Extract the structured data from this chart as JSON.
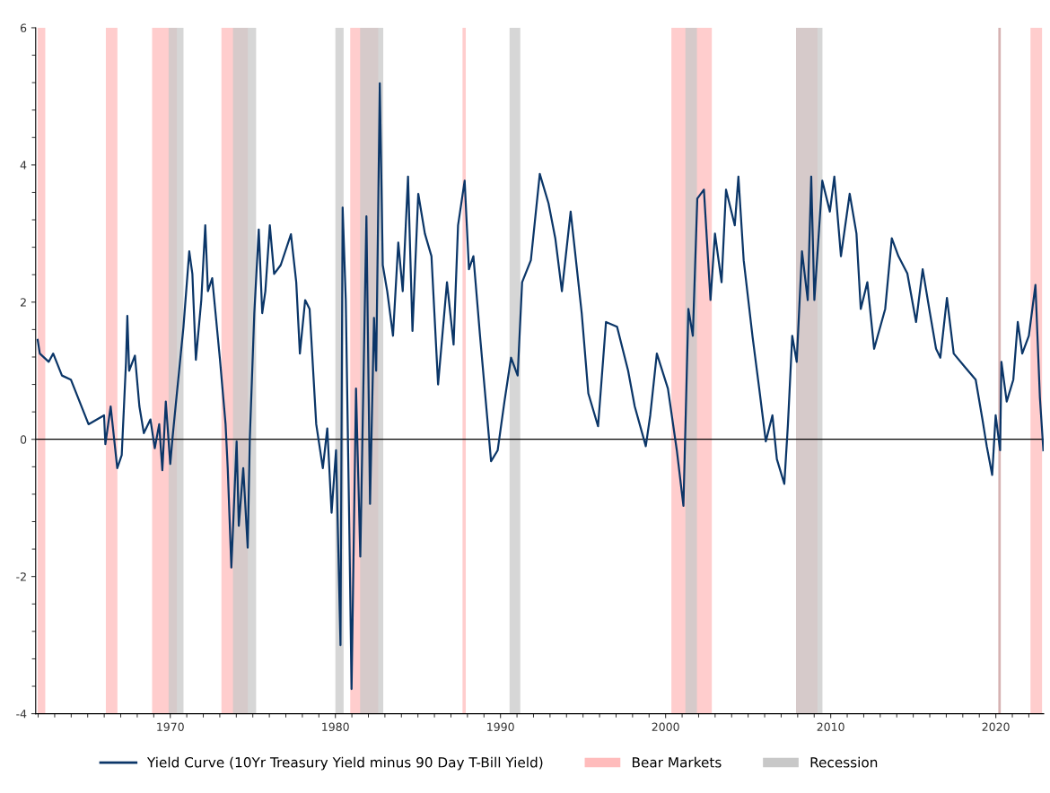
{
  "chart_data": {
    "type": "line",
    "xlim": [
      1961.85,
      2022.9
    ],
    "xticks": [
      1970,
      1980,
      1990,
      2000,
      2010,
      2020
    ],
    "ylim": [
      -4,
      6
    ],
    "yticks": [
      -4,
      -2,
      0,
      2,
      4,
      6
    ],
    "grid": false,
    "legend": "bottom",
    "marker": "none",
    "line_style": "solid",
    "series": [
      {
        "name": "Yield Curve (10Yr Treasury Yield minus 90 Day T-Bill Yield)",
        "color": "#0b3668",
        "x": [
          1961.97,
          1962.1,
          1962.64,
          1962.91,
          1963.44,
          1963.98,
          1965.05,
          1965.99,
          1966.07,
          1966.39,
          1966.79,
          1967.06,
          1967.32,
          1967.4,
          1967.51,
          1967.86,
          1968.13,
          1968.4,
          1968.8,
          1969.06,
          1969.33,
          1969.52,
          1969.73,
          1970.0,
          1970.14,
          1970.4,
          1970.8,
          1971.15,
          1971.34,
          1971.55,
          1971.88,
          1972.12,
          1972.28,
          1972.54,
          1973.0,
          1973.35,
          1973.48,
          1973.7,
          1974.02,
          1974.15,
          1974.42,
          1974.69,
          1974.82,
          1975.09,
          1975.36,
          1975.57,
          1975.76,
          1976.03,
          1976.29,
          1976.69,
          1977.31,
          1977.63,
          1977.85,
          1978.17,
          1978.44,
          1978.84,
          1979.24,
          1979.51,
          1979.77,
          1980.04,
          1980.31,
          1980.44,
          1980.63,
          1980.85,
          1980.98,
          1981.25,
          1981.51,
          1981.88,
          1982.1,
          1982.34,
          1982.47,
          1982.69,
          1982.87,
          1983.14,
          1983.49,
          1983.81,
          1984.08,
          1984.4,
          1984.67,
          1985.02,
          1985.42,
          1985.82,
          1986.22,
          1986.76,
          1987.16,
          1987.43,
          1987.83,
          1988.09,
          1988.36,
          1988.76,
          1989.43,
          1989.83,
          1990.24,
          1990.64,
          1991.04,
          1991.31,
          1991.84,
          1992.38,
          1992.91,
          1993.32,
          1993.72,
          1994.25,
          1994.92,
          1995.32,
          1995.91,
          1996.39,
          1997.06,
          1997.73,
          1998.13,
          1998.8,
          1999.07,
          1999.47,
          2000.14,
          2000.68,
          2001.08,
          2001.38,
          2001.65,
          2001.92,
          2002.32,
          2002.72,
          2002.99,
          2003.39,
          2003.66,
          2004.19,
          2004.41,
          2004.73,
          2005.26,
          2005.67,
          2006.07,
          2006.47,
          2006.74,
          2007.19,
          2007.41,
          2007.67,
          2007.94,
          2008.26,
          2008.61,
          2008.82,
          2009.01,
          2009.49,
          2009.95,
          2010.22,
          2010.62,
          2011.15,
          2011.56,
          2011.82,
          2012.22,
          2012.63,
          2013.3,
          2013.7,
          2014.1,
          2014.64,
          2015.17,
          2015.57,
          2015.97,
          2016.38,
          2016.64,
          2017.04,
          2017.45,
          2018.11,
          2018.78,
          2019.19,
          2019.45,
          2019.78,
          2019.99,
          2020.26,
          2020.34,
          2020.66,
          2021.06,
          2021.33,
          2021.6,
          2022.0,
          2022.4,
          2022.67,
          2022.88
        ],
        "values": [
          1.45,
          1.25,
          1.13,
          1.25,
          0.93,
          0.87,
          0.22,
          0.35,
          -0.07,
          0.48,
          -0.42,
          -0.23,
          1.13,
          1.8,
          1.0,
          1.22,
          0.48,
          0.09,
          0.29,
          -0.13,
          0.22,
          -0.45,
          0.55,
          -0.36,
          0.03,
          0.67,
          1.64,
          2.74,
          2.41,
          1.16,
          2.03,
          3.12,
          2.16,
          2.35,
          1.19,
          0.22,
          -0.42,
          -1.87,
          -0.03,
          -1.26,
          -0.42,
          -1.58,
          0.03,
          1.84,
          3.06,
          1.84,
          2.16,
          3.12,
          2.41,
          2.54,
          2.99,
          2.29,
          1.25,
          2.03,
          1.9,
          0.22,
          -0.42,
          0.16,
          -1.07,
          -0.16,
          -3.0,
          3.38,
          2.03,
          -1.39,
          -3.64,
          0.74,
          -1.71,
          3.25,
          -0.94,
          1.77,
          1.0,
          5.19,
          2.54,
          2.16,
          1.51,
          2.87,
          2.16,
          3.83,
          1.58,
          3.58,
          3.0,
          2.67,
          0.8,
          2.29,
          1.38,
          3.12,
          3.77,
          2.48,
          2.67,
          1.51,
          -0.32,
          -0.16,
          0.55,
          1.19,
          0.93,
          2.29,
          2.61,
          3.87,
          3.44,
          2.93,
          2.16,
          3.32,
          1.84,
          0.67,
          0.19,
          1.71,
          1.64,
          1.0,
          0.48,
          -0.1,
          0.35,
          1.25,
          0.74,
          -0.16,
          -0.97,
          1.9,
          1.51,
          3.51,
          3.64,
          2.03,
          3.0,
          2.29,
          3.64,
          3.12,
          3.83,
          2.61,
          1.51,
          0.74,
          -0.03,
          0.35,
          -0.29,
          -0.65,
          0.22,
          1.51,
          1.13,
          2.74,
          2.03,
          3.83,
          2.03,
          3.77,
          3.32,
          3.83,
          2.67,
          3.58,
          3.0,
          1.9,
          2.29,
          1.32,
          1.9,
          2.93,
          2.67,
          2.42,
          1.71,
          2.48,
          1.9,
          1.32,
          1.19,
          2.06,
          1.25,
          1.06,
          0.87,
          0.29,
          -0.1,
          -0.52,
          0.35,
          -0.16,
          1.13,
          0.55,
          0.87,
          1.71,
          1.25,
          1.51,
          2.25,
          0.61,
          -0.16
        ]
      }
    ],
    "ref_lines": [
      {
        "axis": "y",
        "value": 0,
        "color": "#000000",
        "line_style": "solid"
      }
    ],
    "bands": [
      {
        "axis": "x",
        "from": 1961.97,
        "to": 1962.43,
        "label": "Bear Markets",
        "color": "#ffbcbc"
      },
      {
        "axis": "x",
        "from": 1966.1,
        "to": 1966.8,
        "color": "#ffbcbc"
      },
      {
        "axis": "x",
        "from": 1968.9,
        "to": 1970.4,
        "color": "#ffbcbc"
      },
      {
        "axis": "x",
        "from": 1973.1,
        "to": 1974.7,
        "color": "#ffbcbc"
      },
      {
        "axis": "x",
        "from": 1980.9,
        "to": 1982.6,
        "color": "#ffbcbc"
      },
      {
        "axis": "x",
        "from": 1987.7,
        "to": 1987.9,
        "color": "#ffbcbc"
      },
      {
        "axis": "x",
        "from": 2000.35,
        "to": 2002.8,
        "color": "#ffbcbc"
      },
      {
        "axis": "x",
        "from": 2007.9,
        "to": 2009.2,
        "color": "#ffbcbc"
      },
      {
        "axis": "x",
        "from": 2020.15,
        "to": 2020.3,
        "color": "#c89898"
      },
      {
        "axis": "x",
        "from": 2022.1,
        "to": 2022.8,
        "color": "#ffbcbc"
      },
      {
        "axis": "x",
        "from": 1969.9,
        "to": 1970.8,
        "label": "Recession",
        "color": "#c8c8c8"
      },
      {
        "axis": "x",
        "from": 1973.8,
        "to": 1975.2,
        "color": "#c8c8c8"
      },
      {
        "axis": "x",
        "from": 1980.0,
        "to": 1980.5,
        "color": "#c8c8c8"
      },
      {
        "axis": "x",
        "from": 1981.5,
        "to": 1982.9,
        "color": "#c8c8c8"
      },
      {
        "axis": "x",
        "from": 1990.55,
        "to": 1991.2,
        "color": "#c8c8c8"
      },
      {
        "axis": "x",
        "from": 2001.2,
        "to": 2001.9,
        "color": "#c8c8c8"
      },
      {
        "axis": "x",
        "from": 2007.9,
        "to": 2009.5,
        "color": "#c8c8c8"
      }
    ]
  }
}
